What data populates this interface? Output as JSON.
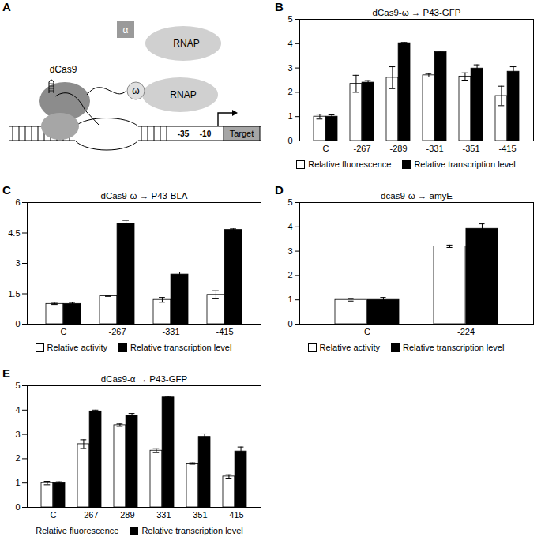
{
  "diagram": {
    "panel": "A",
    "labels": {
      "dcas9": "dCas9",
      "alpha": "α",
      "omega": "ω",
      "rnap_top": "RNAP",
      "rnap": "RNAP",
      "m35": "-35",
      "m10": "-10",
      "target": "Target"
    }
  },
  "chart_data": [
    {
      "type": "bar",
      "annotations": [
        "B"
      ],
      "title": "dCas9-ω → P43-GFP",
      "categories": [
        "C",
        "-267",
        "-289",
        "-331",
        "-351",
        "-415"
      ],
      "series": [
        {
          "name": "Relative fluorescence",
          "color": "#ffffff",
          "values": [
            1.0,
            2.35,
            2.6,
            2.7,
            2.65,
            1.85
          ],
          "errors": [
            0.1,
            0.35,
            0.45,
            0.07,
            0.15,
            0.4
          ]
        },
        {
          "name": "Relative transcription level",
          "color": "#000000",
          "values": [
            1.0,
            2.4,
            4.02,
            3.65,
            2.98,
            2.85
          ],
          "errors": [
            0.07,
            0.08,
            0.03,
            0.04,
            0.15,
            0.2
          ]
        }
      ],
      "ylim": [
        0,
        5
      ],
      "yticks": [
        0,
        1,
        2,
        3,
        4,
        5
      ],
      "grid": false,
      "legend": "bottom"
    },
    {
      "type": "bar",
      "annotations": [
        "C"
      ],
      "title": "dCas9-ω → P43-BLA",
      "categories": [
        "C",
        "-267",
        "-331",
        "-415"
      ],
      "series": [
        {
          "name": "Relative activity",
          "color": "#ffffff",
          "values": [
            1.0,
            1.38,
            1.2,
            1.45
          ],
          "errors": [
            0.03,
            0.0,
            0.12,
            0.2
          ]
        },
        {
          "name": "Relative transcription level",
          "color": "#000000",
          "values": [
            1.0,
            4.97,
            2.45,
            4.65
          ],
          "errors": [
            0.07,
            0.15,
            0.12,
            0.05
          ]
        }
      ],
      "ylim": [
        0,
        6
      ],
      "yticks": [
        0,
        1.5,
        3,
        4.5,
        6
      ],
      "grid": false,
      "legend": "bottom"
    },
    {
      "type": "bar",
      "annotations": [
        "D"
      ],
      "title": "dcas9-ω → amyE",
      "categories": [
        "C",
        "-224"
      ],
      "series": [
        {
          "name": "Relative activity",
          "color": "#ffffff",
          "values": [
            1.0,
            3.2
          ],
          "errors": [
            0.05,
            0.05
          ]
        },
        {
          "name": "Relative transcription level",
          "color": "#000000",
          "values": [
            1.0,
            3.92
          ],
          "errors": [
            0.1,
            0.2
          ]
        }
      ],
      "ylim": [
        0,
        5
      ],
      "yticks": [
        0,
        1,
        2,
        3,
        4,
        5
      ],
      "grid": false,
      "legend": "bottom"
    },
    {
      "type": "bar",
      "annotations": [
        "E"
      ],
      "title": "dCas9-α → P43-GFP",
      "categories": [
        "C",
        "-267",
        "-289",
        "-331",
        "-351",
        "-415"
      ],
      "series": [
        {
          "name": "Relative fluorescence",
          "color": "#ffffff",
          "values": [
            1.0,
            2.6,
            3.38,
            2.33,
            1.8,
            1.27
          ],
          "errors": [
            0.07,
            0.18,
            0.05,
            0.08,
            0.03,
            0.07
          ]
        },
        {
          "name": "Relative transcription level",
          "color": "#000000",
          "values": [
            1.0,
            3.95,
            3.78,
            4.52,
            2.9,
            2.3
          ],
          "errors": [
            0.05,
            0.05,
            0.08,
            0.04,
            0.12,
            0.18
          ]
        }
      ],
      "ylim": [
        0,
        5
      ],
      "yticks": [
        0,
        1,
        2,
        3,
        4,
        5
      ],
      "grid": false,
      "legend": "bottom"
    }
  ]
}
